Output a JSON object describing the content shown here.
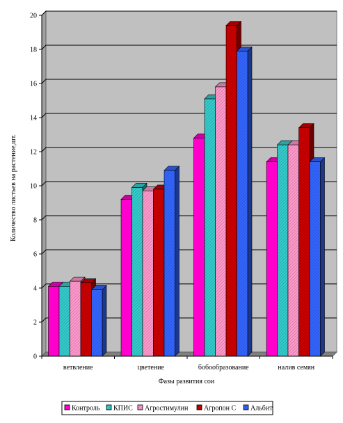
{
  "chart_data": {
    "type": "bar",
    "title": "",
    "xlabel": "Фазы развития сои",
    "ylabel": "Количество листьев  на растение,шт.",
    "categories": [
      "ветвление",
      "цветение",
      "бобообразование",
      "налив семян"
    ],
    "ylim": [
      0,
      20
    ],
    "yticks": [
      "0",
      "2",
      "4",
      "6",
      "8",
      "10",
      "12",
      "14",
      "16",
      "18",
      "20"
    ],
    "grid": true,
    "legend_position": "bottom",
    "series": [
      {
        "name": "Контроль",
        "values": [
          4.1,
          9.2,
          12.8,
          11.4
        ],
        "color": "#ff00cc",
        "pattern": "solid"
      },
      {
        "name": "КПИС",
        "values": [
          4.1,
          9.9,
          15.1,
          12.4
        ],
        "color": "#33cccc",
        "pattern": "hatch"
      },
      {
        "name": "Агростимулин",
        "values": [
          4.4,
          9.7,
          15.8,
          12.4
        ],
        "color": "#ff99cc",
        "pattern": "hatch"
      },
      {
        "name": "Агропон С",
        "values": [
          4.3,
          9.8,
          19.4,
          13.4
        ],
        "color": "#cc0000",
        "pattern": "hatch"
      },
      {
        "name": "Альбит",
        "values": [
          3.9,
          10.9,
          17.9,
          11.4
        ],
        "color": "#3366ff",
        "pattern": "hatch"
      }
    ],
    "plot_background": "#c0c0c0"
  }
}
